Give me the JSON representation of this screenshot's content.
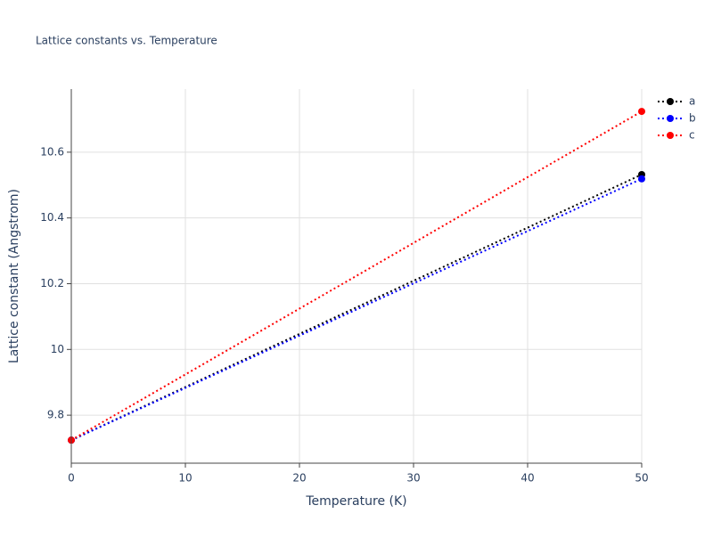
{
  "chart_data": {
    "type": "line",
    "title": "Lattice constants vs. Temperature",
    "x_label": "Temperature (K)",
    "y_label": "Lattice constant (Angstrom)",
    "x": [
      0,
      50
    ],
    "series": [
      {
        "name": "a",
        "color": "#000000",
        "values": [
          9.724,
          10.532
        ]
      },
      {
        "name": "b",
        "color": "#0000ff",
        "values": [
          9.724,
          10.519
        ]
      },
      {
        "name": "c",
        "color": "#ff0000",
        "values": [
          9.724,
          10.724
        ]
      }
    ],
    "xlim": [
      0,
      50
    ],
    "xticks": [
      0,
      10,
      20,
      30,
      40,
      50
    ],
    "ylim": [
      9.654,
      10.792
    ],
    "yticks": [
      9.8,
      10,
      10.2,
      10.4,
      10.6
    ],
    "grid": true,
    "legend": "top-right",
    "line_style": "dotted"
  }
}
